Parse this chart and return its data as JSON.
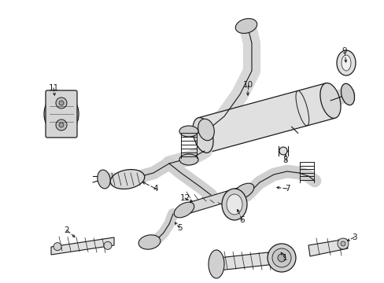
{
  "bg": "#ffffff",
  "lc": "#1a1a1a",
  "fc": "#e8e8e8",
  "fig_w": 4.89,
  "fig_h": 3.6,
  "dpi": 100
}
